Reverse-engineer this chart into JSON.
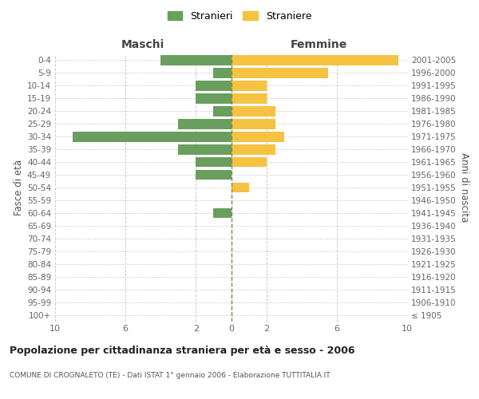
{
  "age_groups": [
    "100+",
    "95-99",
    "90-94",
    "85-89",
    "80-84",
    "75-79",
    "70-74",
    "65-69",
    "60-64",
    "55-59",
    "50-54",
    "45-49",
    "40-44",
    "35-39",
    "30-34",
    "25-29",
    "20-24",
    "15-19",
    "10-14",
    "5-9",
    "0-4"
  ],
  "birth_years": [
    "≤ 1905",
    "1906-1910",
    "1911-1915",
    "1916-1920",
    "1921-1925",
    "1926-1930",
    "1931-1935",
    "1936-1940",
    "1941-1945",
    "1946-1950",
    "1951-1955",
    "1956-1960",
    "1961-1965",
    "1966-1970",
    "1971-1975",
    "1976-1980",
    "1981-1985",
    "1986-1990",
    "1991-1995",
    "1996-2000",
    "2001-2005"
  ],
  "maschi": [
    0,
    0,
    0,
    0,
    0,
    0,
    0,
    0,
    1,
    0,
    0,
    2,
    2,
    3,
    9,
    3,
    1,
    2,
    2,
    1,
    4
  ],
  "femmine": [
    0,
    0,
    0,
    0,
    0,
    0,
    0,
    0,
    0,
    0,
    1,
    0,
    2,
    2.5,
    3,
    2.5,
    2.5,
    2,
    2,
    5.5,
    9.5
  ],
  "male_color": "#6a9e5f",
  "female_color": "#f5c242",
  "center_line_color": "#888840",
  "background_color": "#ffffff",
  "grid_color": "#cccccc",
  "title": "Popolazione per cittadinanza straniera per età e sesso - 2006",
  "subtitle": "COMUNE DI CROGNALETO (TE) - Dati ISTAT 1° gennaio 2006 - Elaborazione TUTTITALIA.IT",
  "xlabel_left": "Maschi",
  "xlabel_right": "Femmine",
  "ylabel_left": "Fasce di età",
  "ylabel_right": "Anni di nascita",
  "legend_male": "Stranieri",
  "legend_female": "Straniere",
  "xlim": 10,
  "bar_height": 0.8,
  "xticks": [
    -10,
    -6,
    -2,
    0,
    2,
    6,
    10
  ],
  "xtick_labels": [
    "10",
    "6",
    "2",
    "0",
    "2",
    "6",
    "10"
  ]
}
